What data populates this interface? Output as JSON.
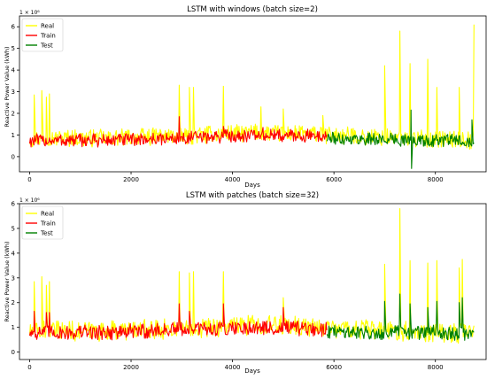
{
  "chart_data": [
    {
      "type": "line",
      "title": "LSTM with windows (batch size=2)",
      "xlabel": "Days",
      "ylabel": "Reactive Power Value (kWh)",
      "y_offset_label": "1 × 10⁶",
      "xlim": [
        -200,
        9000
      ],
      "ylim": [
        -0.7,
        6.5
      ],
      "x_ticks": [
        0,
        2000,
        4000,
        6000,
        8000
      ],
      "y_ticks": [
        0,
        1,
        2,
        3,
        4,
        5,
        6
      ],
      "legend_position": "upper-left",
      "series": [
        {
          "name": "Real",
          "color": "#ffff00",
          "x_range": [
            0,
            8760
          ],
          "base": [
            0.85,
            0.85,
            0.95,
            1.1,
            1.0,
            0.85,
            0.75
          ],
          "spikes": [
            [
              90,
              2.85
            ],
            [
              240,
              3.05
            ],
            [
              330,
              2.75
            ],
            [
              390,
              2.9
            ],
            [
              2950,
              3.3
            ],
            [
              3150,
              3.2
            ],
            [
              3230,
              3.2
            ],
            [
              3820,
              3.25
            ],
            [
              4560,
              2.3
            ],
            [
              5000,
              2.2
            ],
            [
              5780,
              1.9
            ],
            [
              7000,
              4.2
            ],
            [
              7300,
              5.8
            ],
            [
              7500,
              4.3
            ],
            [
              7850,
              4.5
            ],
            [
              8030,
              3.2
            ],
            [
              8470,
              3.2
            ],
            [
              8760,
              6.1
            ]
          ]
        },
        {
          "name": "Train",
          "color": "#ff0000",
          "x_range": [
            0,
            5860
          ],
          "base": [
            0.75,
            0.75,
            0.85,
            1.0,
            0.95
          ],
          "spikes": [
            [
              2950,
              1.85
            ],
            [
              3820,
              1.4
            ],
            [
              4600,
              1.35
            ]
          ]
        },
        {
          "name": "Test",
          "color": "#008000",
          "x_range": [
            5860,
            8760
          ],
          "base": [
            0.85,
            0.8,
            0.75,
            0.75
          ],
          "spikes": [
            [
              7520,
              2.15
            ],
            [
              7530,
              -0.55
            ],
            [
              8720,
              1.7
            ]
          ]
        }
      ]
    },
    {
      "type": "line",
      "title": "LSTM with patches (batch size=32)",
      "xlabel": "Days",
      "ylabel": "Reactive Power Value (kWh)",
      "y_offset_label": "1 × 10⁶",
      "xlim": [
        -200,
        9000
      ],
      "ylim": [
        -0.3,
        6.0
      ],
      "x_ticks": [
        0,
        2000,
        4000,
        6000,
        8000
      ],
      "y_ticks": [
        0,
        1,
        2,
        3,
        4,
        5,
        6
      ],
      "legend_position": "upper-left",
      "series": [
        {
          "name": "Real",
          "color": "#ffff00",
          "x_range": [
            0,
            8760
          ],
          "base": [
            0.85,
            0.85,
            0.95,
            1.1,
            1.0,
            0.85,
            0.75
          ],
          "spikes": [
            [
              90,
              2.85
            ],
            [
              240,
              3.05
            ],
            [
              330,
              2.7
            ],
            [
              390,
              2.85
            ],
            [
              2950,
              3.25
            ],
            [
              3150,
              3.2
            ],
            [
              3230,
              3.25
            ],
            [
              3820,
              3.25
            ],
            [
              5000,
              2.2
            ],
            [
              7000,
              3.55
            ],
            [
              7300,
              5.8
            ],
            [
              7500,
              3.7
            ],
            [
              7850,
              3.6
            ],
            [
              8030,
              3.7
            ],
            [
              8470,
              3.4
            ],
            [
              8530,
              3.75
            ]
          ]
        },
        {
          "name": "Train",
          "color": "#ff0000",
          "x_range": [
            0,
            5860
          ],
          "base": [
            0.8,
            0.8,
            0.9,
            1.0,
            0.9
          ],
          "spikes": [
            [
              90,
              1.65
            ],
            [
              330,
              1.6
            ],
            [
              390,
              1.6
            ],
            [
              2950,
              1.95
            ],
            [
              3150,
              1.65
            ],
            [
              3820,
              1.95
            ],
            [
              5000,
              1.8
            ]
          ]
        },
        {
          "name": "Test",
          "color": "#008000",
          "x_range": [
            5860,
            8760
          ],
          "base": [
            0.85,
            0.8,
            0.8,
            0.75
          ],
          "spikes": [
            [
              7000,
              2.05
            ],
            [
              7300,
              2.35
            ],
            [
              7500,
              1.95
            ],
            [
              7850,
              1.8
            ],
            [
              8030,
              2.05
            ],
            [
              8470,
              2.0
            ],
            [
              8530,
              2.2
            ]
          ]
        }
      ]
    }
  ]
}
